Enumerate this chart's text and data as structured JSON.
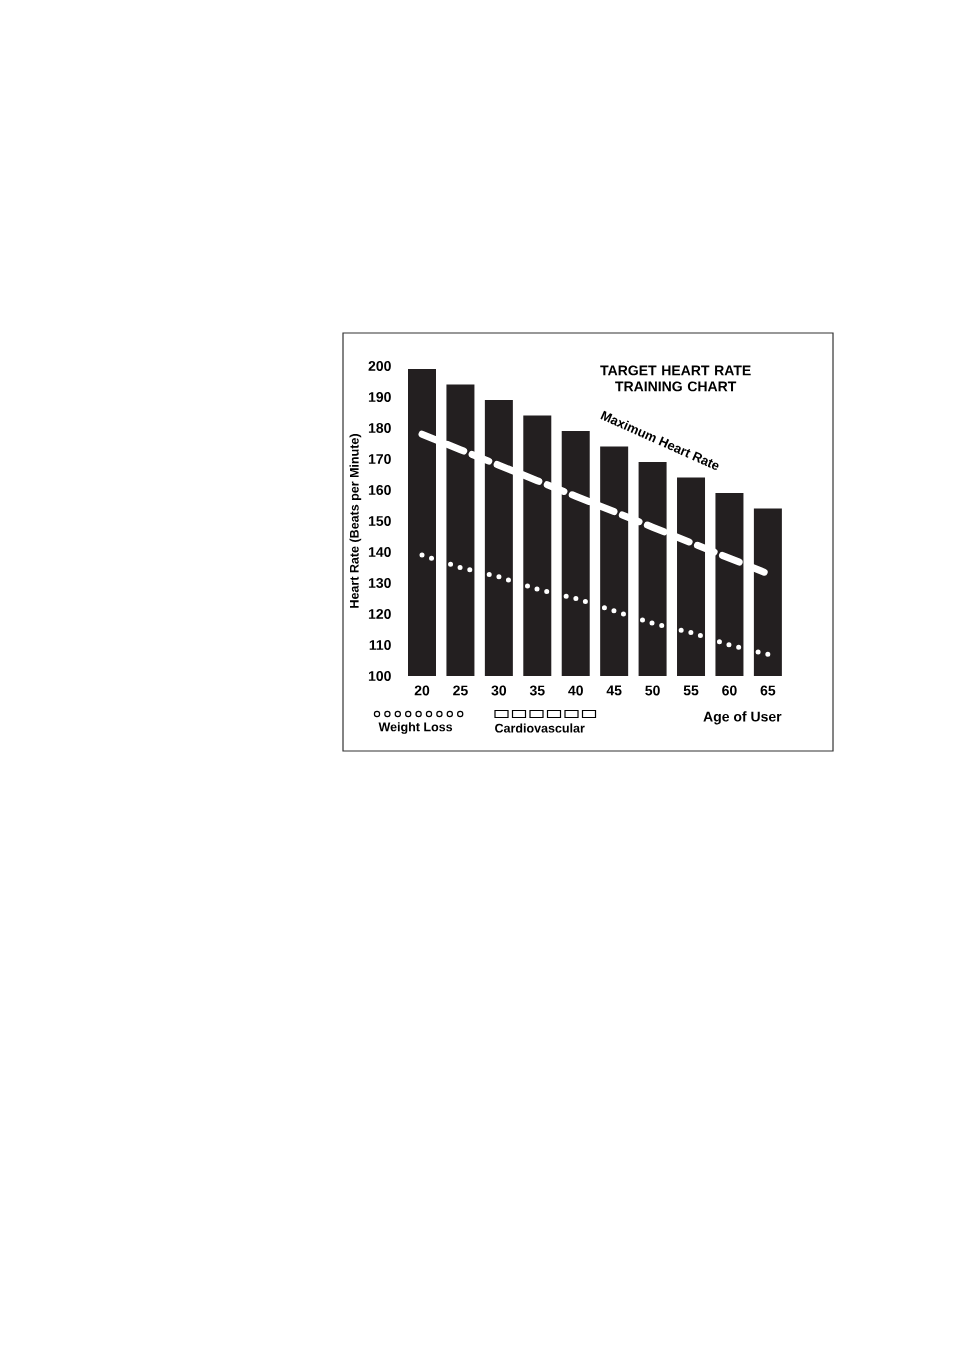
{
  "chart_data": {
    "type": "bar",
    "title": "TARGET HEART RATE TRAINING CHART",
    "xlabel": "Age of User",
    "ylabel": "Heart Rate (Beats per Minute)",
    "categories": [
      "20",
      "25",
      "30",
      "35",
      "40",
      "45",
      "50",
      "55",
      "60",
      "65"
    ],
    "ylim": [
      100,
      200
    ],
    "yticks": [
      100,
      110,
      120,
      130,
      140,
      150,
      160,
      170,
      180,
      190,
      200
    ],
    "legend": "bottom",
    "grid": false,
    "series": [
      {
        "name": "Maximum Heart Rate",
        "color": "#231f20",
        "values": [
          199,
          194,
          189,
          184,
          179,
          174,
          169,
          164,
          159,
          154
        ]
      },
      {
        "name": "Weight Loss",
        "type": "line",
        "line_style": "dotted",
        "color": "#ffffff",
        "values": [
          139,
          135,
          132,
          128,
          125,
          121,
          117,
          114,
          110,
          107
        ]
      },
      {
        "name": "Cardiovascular",
        "type": "line",
        "line_style": "dashed",
        "color": "#ffffff",
        "values": [
          178,
          173,
          168,
          163,
          158,
          153,
          148,
          143,
          138,
          133
        ]
      }
    ]
  }
}
